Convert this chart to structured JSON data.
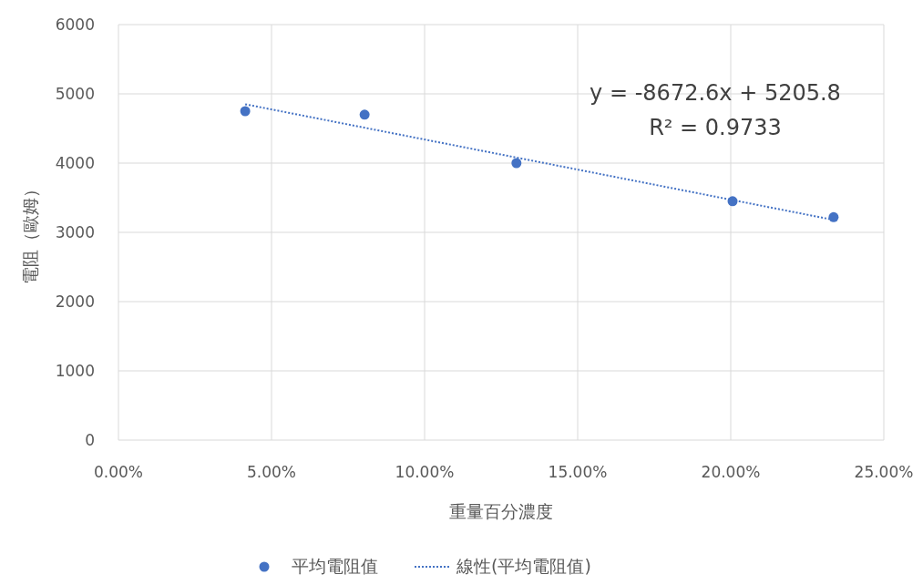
{
  "chart_data": {
    "type": "scatter",
    "xlabel": "重量百分濃度",
    "ylabel": "電阻（歐姆）",
    "xlim": [
      0,
      0.25
    ],
    "xticks": [
      {
        "value": 0,
        "label": "0.00%"
      },
      {
        "value": 0.05,
        "label": "5.00%"
      },
      {
        "value": 0.1,
        "label": "10.00%"
      },
      {
        "value": 0.15,
        "label": "15.00%"
      },
      {
        "value": 0.2,
        "label": "20.00%"
      },
      {
        "value": 0.25,
        "label": "25.00%"
      }
    ],
    "ylim": [
      0,
      6000
    ],
    "yticks": [
      0,
      1000,
      2000,
      3000,
      4000,
      5000,
      6000
    ],
    "grid": true,
    "legend": "bottom",
    "series": [
      {
        "name": "平均電阻值",
        "color": "#4472c4",
        "marker": "circle",
        "x": [
          0.0414,
          0.0804,
          0.13,
          0.2006,
          0.2336
        ],
        "values": [
          4750,
          4700,
          4000,
          3450,
          3220
        ]
      },
      {
        "name": "線性(平均電阻值)",
        "type": "line",
        "color": "#4472c4",
        "line_style": "dotted",
        "marker": "none",
        "x": [
          0.0414,
          0.2336
        ],
        "values": [
          4850,
          3180
        ]
      }
    ],
    "annotations": [
      "y = -8672.6x + 5205.8",
      "R² = 0.9733"
    ]
  }
}
